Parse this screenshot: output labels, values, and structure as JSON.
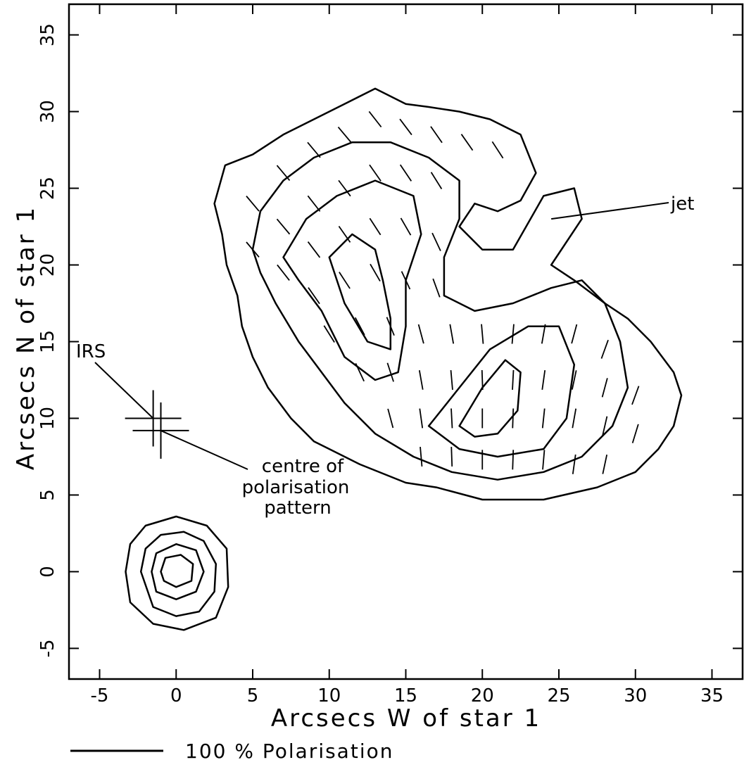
{
  "chart_data": {
    "type": "contour",
    "xlabel": "Arcsecs W of star 1",
    "ylabel": "Arcsecs N of star 1",
    "xlim": [
      -7,
      37
    ],
    "ylim": [
      -7,
      37
    ],
    "x_ticks": [
      -5,
      0,
      5,
      10,
      15,
      20,
      25,
      30,
      35
    ],
    "y_ticks": [
      -5,
      0,
      5,
      10,
      15,
      20,
      25,
      30,
      35
    ],
    "x_tick_labels": [
      "-5",
      "0",
      "5",
      "10",
      "15",
      "20",
      "25",
      "30",
      "35"
    ],
    "y_tick_labels": [
      "-5",
      "0",
      "5",
      "10",
      "15",
      "20",
      "25",
      "30",
      "35"
    ],
    "scale_bar": {
      "label": "100 % Polarisation",
      "length_arcsec": 5.8
    },
    "markers": [
      {
        "name": "IRS",
        "x": -1.5,
        "y": 10.0,
        "label": "IRS"
      },
      {
        "name": "centre of polarisation pattern",
        "x": -1.0,
        "y": 9.2,
        "label": "centre of polarisation pattern"
      }
    ],
    "annotations": [
      {
        "text": "jet",
        "x": 24.5,
        "y": 23.0
      }
    ],
    "contours": [
      {
        "group": "star-1",
        "level": 1,
        "points": [
          [
            -3.3,
            0
          ],
          [
            -3.0,
            1.8
          ],
          [
            -2.0,
            3.0
          ],
          [
            0,
            3.6
          ],
          [
            2.0,
            3.0
          ],
          [
            3.3,
            1.5
          ],
          [
            3.4,
            -1.0
          ],
          [
            2.6,
            -3.0
          ],
          [
            0.5,
            -3.8
          ],
          [
            -1.5,
            -3.4
          ],
          [
            -3.0,
            -2.0
          ]
        ]
      },
      {
        "group": "star-1",
        "level": 2,
        "points": [
          [
            -2.3,
            0
          ],
          [
            -2.0,
            1.5
          ],
          [
            -1.0,
            2.4
          ],
          [
            0.5,
            2.6
          ],
          [
            1.8,
            2.0
          ],
          [
            2.6,
            0.5
          ],
          [
            2.5,
            -1.3
          ],
          [
            1.5,
            -2.6
          ],
          [
            0,
            -2.9
          ],
          [
            -1.5,
            -2.3
          ]
        ]
      },
      {
        "group": "star-1",
        "level": 3,
        "points": [
          [
            -1.6,
            0
          ],
          [
            -1.3,
            1.2
          ],
          [
            0,
            1.8
          ],
          [
            1.3,
            1.4
          ],
          [
            1.8,
            0
          ],
          [
            1.3,
            -1.3
          ],
          [
            0,
            -1.8
          ],
          [
            -1.3,
            -1.3
          ]
        ]
      },
      {
        "group": "star-1",
        "level": 4,
        "points": [
          [
            -1.0,
            0
          ],
          [
            -0.7,
            0.9
          ],
          [
            0.3,
            1.1
          ],
          [
            1.1,
            0.5
          ],
          [
            1.0,
            -0.6
          ],
          [
            0,
            -1.0
          ],
          [
            -0.8,
            -0.6
          ]
        ]
      },
      {
        "group": "nebula",
        "level": 1,
        "points": [
          [
            2.5,
            24
          ],
          [
            3.2,
            26.5
          ],
          [
            5,
            27.2
          ],
          [
            7,
            28.5
          ],
          [
            9,
            29.5
          ],
          [
            11,
            30.5
          ],
          [
            13,
            31.5
          ],
          [
            15,
            30.5
          ],
          [
            16.5,
            30.3
          ],
          [
            18.5,
            30
          ],
          [
            20.5,
            29.5
          ],
          [
            22.5,
            28.5
          ],
          [
            23.5,
            26
          ],
          [
            22.5,
            24.2
          ],
          [
            21,
            23.5
          ],
          [
            19.5,
            24
          ],
          [
            18.5,
            22.5
          ],
          [
            20,
            21
          ],
          [
            22,
            21
          ],
          [
            24,
            24.5
          ],
          [
            26,
            25
          ],
          [
            26.5,
            23
          ],
          [
            24.5,
            20
          ],
          [
            26,
            19
          ],
          [
            28,
            17.5
          ],
          [
            29.5,
            16.5
          ],
          [
            31,
            15
          ],
          [
            32.5,
            13
          ],
          [
            33,
            11.5
          ],
          [
            32.5,
            9.5
          ],
          [
            31.5,
            8
          ],
          [
            30,
            6.5
          ],
          [
            27.5,
            5.5
          ],
          [
            24,
            4.7
          ],
          [
            20,
            4.7
          ],
          [
            17,
            5.5
          ],
          [
            15,
            5.8
          ],
          [
            12,
            7
          ],
          [
            9,
            8.5
          ],
          [
            7.5,
            10
          ],
          [
            6,
            12
          ],
          [
            5,
            14
          ],
          [
            4.3,
            16
          ],
          [
            4,
            18
          ],
          [
            3.3,
            20
          ],
          [
            3,
            22
          ]
        ]
      },
      {
        "group": "nebula",
        "level": 2,
        "points": [
          [
            5,
            21
          ],
          [
            5.5,
            23.5
          ],
          [
            7,
            25.5
          ],
          [
            9,
            27
          ],
          [
            11.5,
            28
          ],
          [
            14,
            28
          ],
          [
            16.5,
            27
          ],
          [
            18.5,
            25.5
          ],
          [
            18.5,
            23
          ],
          [
            17.5,
            20.5
          ],
          [
            17.5,
            18
          ],
          [
            19.5,
            17
          ],
          [
            22,
            17.5
          ],
          [
            24.5,
            18.5
          ],
          [
            26.5,
            19
          ],
          [
            28,
            17.5
          ],
          [
            29,
            15
          ],
          [
            29.5,
            12
          ],
          [
            28.5,
            9.5
          ],
          [
            26.5,
            7.5
          ],
          [
            24,
            6.5
          ],
          [
            21,
            6
          ],
          [
            18,
            6.5
          ],
          [
            15.5,
            7.5
          ],
          [
            13,
            9
          ],
          [
            11,
            11
          ],
          [
            9.5,
            13
          ],
          [
            8,
            15
          ],
          [
            6.5,
            17.5
          ],
          [
            5.5,
            19.5
          ]
        ]
      },
      {
        "group": "nebula",
        "level": 3,
        "points": [
          [
            7,
            20.5
          ],
          [
            8.5,
            23
          ],
          [
            10.5,
            24.5
          ],
          [
            13,
            25.5
          ],
          [
            15.5,
            24.5
          ],
          [
            16,
            22
          ],
          [
            15,
            19
          ],
          [
            15,
            16
          ],
          [
            14.5,
            13
          ],
          [
            13,
            12.5
          ],
          [
            11,
            14
          ],
          [
            9.5,
            17
          ],
          [
            8,
            19
          ]
        ]
      },
      {
        "group": "nebula",
        "level": 4,
        "points": [
          [
            10,
            20.5
          ],
          [
            11.5,
            22
          ],
          [
            13,
            21
          ],
          [
            13.5,
            19
          ],
          [
            14,
            16.5
          ],
          [
            14,
            14.5
          ],
          [
            12.5,
            15
          ],
          [
            11,
            17.5
          ]
        ]
      },
      {
        "group": "nebula",
        "level": 5,
        "points": [
          [
            16.5,
            9.5
          ],
          [
            18.5,
            12
          ],
          [
            20.5,
            14.5
          ],
          [
            23,
            16
          ],
          [
            25,
            16
          ],
          [
            26,
            13.5
          ],
          [
            25.5,
            10
          ],
          [
            24,
            8
          ],
          [
            21,
            7.5
          ],
          [
            18.5,
            8
          ]
        ]
      },
      {
        "group": "nebula",
        "level": 6,
        "points": [
          [
            18.5,
            9.5
          ],
          [
            20,
            12
          ],
          [
            21.5,
            13.8
          ],
          [
            22.5,
            13
          ],
          [
            22.3,
            10.5
          ],
          [
            21,
            9
          ],
          [
            19.5,
            8.8
          ]
        ]
      }
    ],
    "polarization_vectors": [
      {
        "x": 5,
        "y": 24,
        "angle": 140
      },
      {
        "x": 7,
        "y": 26,
        "angle": 140
      },
      {
        "x": 9,
        "y": 27.5,
        "angle": 140
      },
      {
        "x": 11,
        "y": 28.5,
        "angle": 140
      },
      {
        "x": 13,
        "y": 29.5,
        "angle": 142
      },
      {
        "x": 15,
        "y": 29,
        "angle": 143
      },
      {
        "x": 17,
        "y": 28.5,
        "angle": 145
      },
      {
        "x": 19,
        "y": 28,
        "angle": 145
      },
      {
        "x": 21,
        "y": 27.5,
        "angle": 147
      },
      {
        "x": 5,
        "y": 21,
        "angle": 140
      },
      {
        "x": 7,
        "y": 22.5,
        "angle": 140
      },
      {
        "x": 9,
        "y": 24,
        "angle": 142
      },
      {
        "x": 11,
        "y": 25,
        "angle": 143
      },
      {
        "x": 13,
        "y": 26,
        "angle": 145
      },
      {
        "x": 15,
        "y": 26,
        "angle": 146
      },
      {
        "x": 17,
        "y": 25.5,
        "angle": 148
      },
      {
        "x": 7,
        "y": 19.5,
        "angle": 142
      },
      {
        "x": 9,
        "y": 21,
        "angle": 143
      },
      {
        "x": 11,
        "y": 22,
        "angle": 145
      },
      {
        "x": 13,
        "y": 22.5,
        "angle": 147
      },
      {
        "x": 15,
        "y": 22.5,
        "angle": 150
      },
      {
        "x": 17,
        "y": 21.5,
        "angle": 155
      },
      {
        "x": 9,
        "y": 18,
        "angle": 145
      },
      {
        "x": 11,
        "y": 19,
        "angle": 147
      },
      {
        "x": 13,
        "y": 19.5,
        "angle": 150
      },
      {
        "x": 15,
        "y": 19,
        "angle": 155
      },
      {
        "x": 17,
        "y": 18.5,
        "angle": 160
      },
      {
        "x": 10,
        "y": 15.5,
        "angle": 148
      },
      {
        "x": 12,
        "y": 16,
        "angle": 152
      },
      {
        "x": 14,
        "y": 16,
        "angle": 158
      },
      {
        "x": 16,
        "y": 15.5,
        "angle": 165
      },
      {
        "x": 18,
        "y": 15.5,
        "angle": 170
      },
      {
        "x": 20,
        "y": 15.5,
        "angle": 175
      },
      {
        "x": 22,
        "y": 15.5,
        "angle": 5
      },
      {
        "x": 24,
        "y": 15.5,
        "angle": 10
      },
      {
        "x": 26,
        "y": 15.5,
        "angle": 15
      },
      {
        "x": 28,
        "y": 14.5,
        "angle": 20
      },
      {
        "x": 12,
        "y": 13,
        "angle": 155
      },
      {
        "x": 14,
        "y": 13,
        "angle": 162
      },
      {
        "x": 16,
        "y": 12.5,
        "angle": 170
      },
      {
        "x": 18,
        "y": 12.5,
        "angle": 175
      },
      {
        "x": 20,
        "y": 12.5,
        "angle": 178
      },
      {
        "x": 22,
        "y": 12.5,
        "angle": 3
      },
      {
        "x": 24,
        "y": 12.5,
        "angle": 8
      },
      {
        "x": 26,
        "y": 12.5,
        "angle": 12
      },
      {
        "x": 28,
        "y": 12,
        "angle": 15
      },
      {
        "x": 30,
        "y": 11.5,
        "angle": 20
      },
      {
        "x": 14,
        "y": 10,
        "angle": 165
      },
      {
        "x": 16,
        "y": 10,
        "angle": 172
      },
      {
        "x": 18,
        "y": 10,
        "angle": 177
      },
      {
        "x": 20,
        "y": 10,
        "angle": 180
      },
      {
        "x": 22,
        "y": 10,
        "angle": 2
      },
      {
        "x": 24,
        "y": 10,
        "angle": 6
      },
      {
        "x": 26,
        "y": 10,
        "angle": 10
      },
      {
        "x": 28,
        "y": 9.5,
        "angle": 13
      },
      {
        "x": 30,
        "y": 9,
        "angle": 17
      },
      {
        "x": 16,
        "y": 7.5,
        "angle": 175
      },
      {
        "x": 18,
        "y": 7.5,
        "angle": 178
      },
      {
        "x": 20,
        "y": 7.3,
        "angle": 180
      },
      {
        "x": 22,
        "y": 7.3,
        "angle": 2
      },
      {
        "x": 24,
        "y": 7.3,
        "angle": 5
      },
      {
        "x": 26,
        "y": 7,
        "angle": 8
      },
      {
        "x": 28,
        "y": 7,
        "angle": 12
      }
    ]
  }
}
